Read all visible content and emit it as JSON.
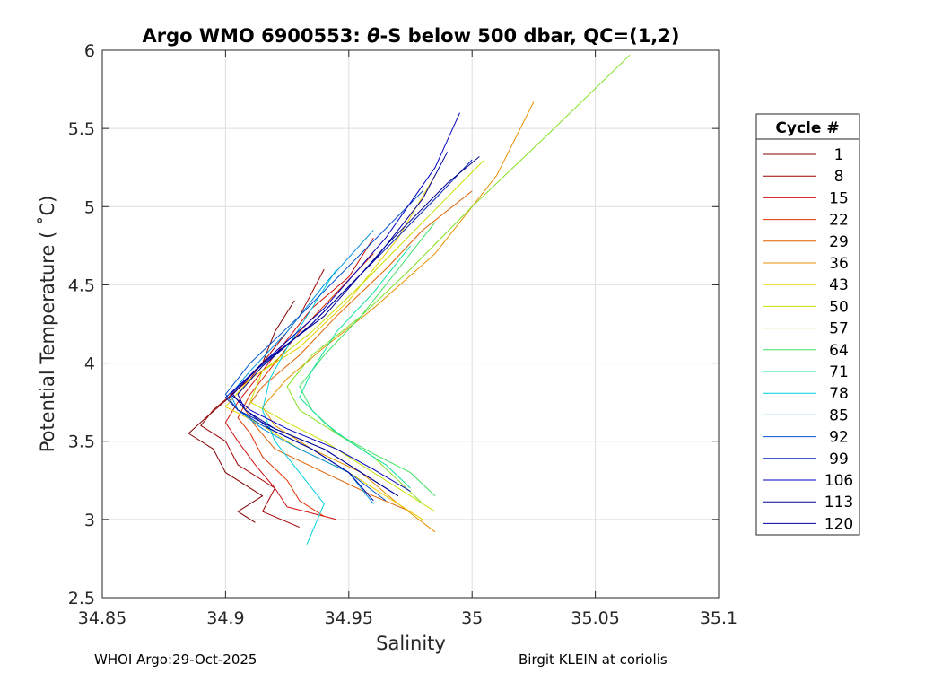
{
  "chart_data": {
    "type": "line",
    "title_prefix": "Argo WMO 6900553: ",
    "title_theta": "θ",
    "title_suffix": "-S below 500 dbar,  QC=(1,2)",
    "xlabel": "Salinity",
    "ylabel": "Potential Temperature ( ˚C)",
    "xlim": [
      34.85,
      35.1
    ],
    "ylim": [
      2.5,
      6
    ],
    "xticks": [
      34.85,
      34.9,
      34.95,
      35,
      35.05,
      35.1
    ],
    "xtick_labels": [
      "34.85",
      "34.9",
      "34.95",
      "35",
      "35.05",
      "35.1"
    ],
    "yticks": [
      2.5,
      3,
      3.5,
      4,
      4.5,
      5,
      5.5,
      6
    ],
    "ytick_labels": [
      "2.5",
      "3",
      "3.5",
      "4",
      "4.5",
      "5",
      "5.5",
      "6"
    ],
    "grid": true,
    "legend_position": "right-outside",
    "legend_title": "Cycle #",
    "legend": [
      {
        "label": "1",
        "color": "#800000"
      },
      {
        "label": "8",
        "color": "#a00000"
      },
      {
        "label": "15",
        "color": "#d01010"
      },
      {
        "label": "22",
        "color": "#e03000"
      },
      {
        "label": "29",
        "color": "#e06000"
      },
      {
        "label": "36",
        "color": "#e89000"
      },
      {
        "label": "43",
        "color": "#e8d000"
      },
      {
        "label": "50",
        "color": "#c8e000"
      },
      {
        "label": "57",
        "color": "#80e020"
      },
      {
        "label": "64",
        "color": "#40e060"
      },
      {
        "label": "71",
        "color": "#10e0a0"
      },
      {
        "label": "78",
        "color": "#00d0e0"
      },
      {
        "label": "85",
        "color": "#0090e0"
      },
      {
        "label": "92",
        "color": "#0050d0"
      },
      {
        "label": "99",
        "color": "#0020b0"
      },
      {
        "label": "106",
        "color": "#0000c0"
      },
      {
        "label": "113",
        "color": "#000090"
      },
      {
        "label": "120",
        "color": "#0000a0"
      }
    ],
    "series": [
      {
        "name": "1",
        "color": "#800000",
        "salinity": [
          34.912,
          34.905,
          34.915,
          34.9,
          34.895,
          34.885,
          34.892,
          34.903,
          34.915,
          34.92,
          34.928
        ],
        "theta": [
          2.98,
          3.05,
          3.15,
          3.3,
          3.45,
          3.55,
          3.65,
          3.8,
          4.0,
          4.2,
          4.4
        ]
      },
      {
        "name": "8",
        "color": "#a00000",
        "salinity": [
          34.93,
          34.915,
          34.92,
          34.905,
          34.9,
          34.89,
          34.895,
          34.91,
          34.92,
          34.93,
          34.94
        ],
        "theta": [
          2.95,
          3.05,
          3.2,
          3.35,
          3.5,
          3.6,
          3.7,
          3.9,
          4.1,
          4.3,
          4.6
        ]
      },
      {
        "name": "15",
        "color": "#d01010",
        "salinity": [
          34.945,
          34.925,
          34.92,
          34.912,
          34.905,
          34.9,
          34.905,
          34.915,
          34.925,
          34.935,
          34.95,
          34.96
        ],
        "theta": [
          3.0,
          3.08,
          3.2,
          3.35,
          3.5,
          3.62,
          3.75,
          3.95,
          4.15,
          4.35,
          4.55,
          4.8
        ]
      },
      {
        "name": "22",
        "color": "#e03000",
        "salinity": [
          34.94,
          34.93,
          34.925,
          34.915,
          34.91,
          34.905,
          34.91,
          34.92,
          34.93,
          34.945,
          34.96
        ],
        "theta": [
          3.02,
          3.12,
          3.25,
          3.4,
          3.55,
          3.65,
          3.8,
          4.0,
          4.2,
          4.45,
          4.7
        ]
      },
      {
        "name": "29",
        "color": "#e06000",
        "salinity": [
          34.975,
          34.96,
          34.94,
          34.92,
          34.912,
          34.908,
          34.915,
          34.93,
          34.945,
          34.965,
          34.98,
          35.0
        ],
        "theta": [
          3.05,
          3.15,
          3.3,
          3.45,
          3.6,
          3.7,
          3.85,
          4.05,
          4.3,
          4.6,
          4.85,
          5.1
        ]
      },
      {
        "name": "36",
        "color": "#e89000",
        "salinity": [
          34.985,
          34.97,
          34.955,
          34.935,
          34.92,
          34.915,
          34.925,
          34.94,
          34.96,
          34.985,
          35.01,
          35.025
        ],
        "theta": [
          2.92,
          3.1,
          3.3,
          3.45,
          3.6,
          3.72,
          3.9,
          4.1,
          4.35,
          4.7,
          5.2,
          5.67
        ]
      },
      {
        "name": "43",
        "color": "#e8d000",
        "salinity": [
          34.98,
          34.965,
          34.95,
          34.93,
          34.915,
          34.9,
          34.91,
          34.93,
          34.95,
          34.97,
          34.985
        ],
        "theta": [
          3.0,
          3.15,
          3.3,
          3.45,
          3.6,
          3.72,
          3.9,
          4.1,
          4.4,
          4.8,
          5.2
        ]
      },
      {
        "name": "50",
        "color": "#c8e000",
        "salinity": [
          34.985,
          34.97,
          34.955,
          34.94,
          34.925,
          34.91,
          34.915,
          34.935,
          34.955,
          34.98,
          35.005
        ],
        "theta": [
          3.05,
          3.2,
          3.35,
          3.5,
          3.62,
          3.75,
          3.95,
          4.2,
          4.5,
          4.9,
          5.3
        ]
      },
      {
        "name": "57",
        "color": "#80e020",
        "salinity": [
          34.98,
          34.97,
          34.96,
          34.945,
          34.93,
          34.925,
          34.935,
          34.955,
          34.975,
          35.0,
          35.03,
          35.064
        ],
        "theta": [
          3.1,
          3.25,
          3.4,
          3.55,
          3.7,
          3.85,
          4.05,
          4.3,
          4.6,
          5.0,
          5.45,
          5.97
        ]
      },
      {
        "name": "64",
        "color": "#40e060",
        "salinity": [
          34.985,
          34.975,
          34.96,
          34.945,
          34.935,
          34.93,
          34.94,
          34.955,
          34.97,
          34.985
        ],
        "theta": [
          3.15,
          3.3,
          3.42,
          3.55,
          3.7,
          3.85,
          4.05,
          4.3,
          4.6,
          4.9
        ]
      },
      {
        "name": "71",
        "color": "#10e0a0",
        "salinity": [
          34.975,
          34.965,
          34.95,
          34.94,
          34.93,
          34.935,
          34.945,
          34.96,
          34.975
        ],
        "theta": [
          3.2,
          3.35,
          3.5,
          3.62,
          3.78,
          3.95,
          4.2,
          4.45,
          4.75
        ]
      },
      {
        "name": "78",
        "color": "#00d0e0",
        "salinity": [
          34.933,
          34.94,
          34.93,
          34.92,
          34.915,
          34.918,
          34.925,
          34.935,
          34.945
        ],
        "theta": [
          2.84,
          3.1,
          3.3,
          3.5,
          3.7,
          3.9,
          4.1,
          4.35,
          4.6
        ]
      },
      {
        "name": "85",
        "color": "#0090e0",
        "salinity": [
          34.96,
          34.95,
          34.93,
          34.915,
          34.905,
          34.902,
          34.91,
          34.925,
          34.94,
          34.96
        ],
        "theta": [
          3.1,
          3.3,
          3.45,
          3.58,
          3.7,
          3.8,
          3.95,
          4.2,
          4.5,
          4.85
        ]
      },
      {
        "name": "92",
        "color": "#0050d0",
        "salinity": [
          34.965,
          34.95,
          34.935,
          34.915,
          34.905,
          34.9,
          34.91,
          34.93,
          34.955,
          34.98
        ],
        "theta": [
          3.12,
          3.3,
          3.45,
          3.6,
          3.7,
          3.8,
          4.0,
          4.3,
          4.7,
          5.1
        ]
      },
      {
        "name": "99",
        "color": "#0020b0",
        "salinity": [
          34.97,
          34.955,
          34.94,
          34.92,
          34.905,
          34.9,
          34.912,
          34.935,
          34.96,
          34.985,
          35.0
        ],
        "theta": [
          3.15,
          3.3,
          3.45,
          3.58,
          3.7,
          3.78,
          3.95,
          4.25,
          4.65,
          5.05,
          5.3
        ]
      },
      {
        "name": "106",
        "color": "#0000c0",
        "salinity": [
          34.975,
          34.96,
          34.945,
          34.925,
          34.91,
          34.902,
          34.915,
          34.94,
          34.965,
          34.985,
          34.995
        ],
        "theta": [
          3.18,
          3.32,
          3.45,
          3.58,
          3.7,
          3.8,
          4.0,
          4.35,
          4.8,
          5.25,
          5.6
        ]
      },
      {
        "name": "113",
        "color": "#000090",
        "salinity": [
          34.97,
          34.955,
          34.94,
          34.92,
          34.908,
          34.903,
          34.915,
          34.94,
          34.965,
          34.99,
          35.003
        ],
        "theta": [
          3.15,
          3.3,
          3.45,
          3.58,
          3.7,
          3.8,
          4.0,
          4.3,
          4.75,
          5.15,
          5.32
        ]
      },
      {
        "name": "120",
        "color": "#0000a0",
        "salinity": [
          34.96,
          34.95,
          34.935,
          34.918,
          34.908,
          34.905,
          34.915,
          34.935,
          34.96,
          34.98,
          34.99
        ],
        "theta": [
          3.12,
          3.3,
          3.45,
          3.58,
          3.7,
          3.8,
          3.98,
          4.25,
          4.65,
          5.05,
          5.35
        ]
      }
    ]
  },
  "footer": {
    "left": "WHOI Argo:29-Oct-2025",
    "right": "Birgit KLEIN at coriolis"
  }
}
